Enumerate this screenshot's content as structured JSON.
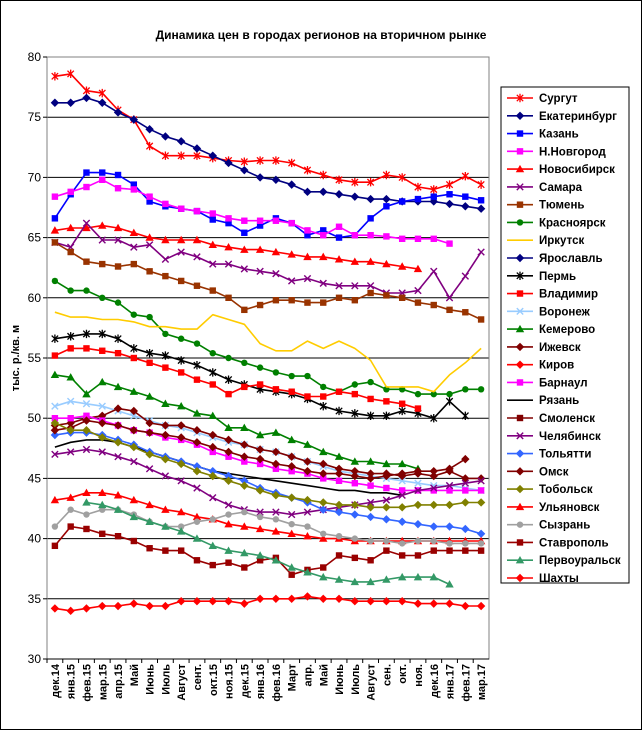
{
  "chart_data": {
    "type": "line",
    "title": "Динамика цен в городах регионов на вторичном рынке",
    "ylabel": "тыс. р./кв. м",
    "xlabel": "",
    "ylim": [
      30,
      80
    ],
    "yticks": [
      30,
      35,
      40,
      45,
      50,
      55,
      60,
      65,
      70,
      75,
      80
    ],
    "grid": "horizontal",
    "legend_position": "right",
    "x_tick_labels": [
      "дек.14",
      "янв.15",
      "фев.15",
      "мар.15",
      "апр.15",
      "Май",
      "Июнь",
      "Июль",
      "Август",
      "сент.",
      "окт.15",
      "ноя.15",
      "дек.15",
      "янв.16",
      "фев.16",
      "Март",
      "апр.",
      "Май",
      "Июнь",
      "Июль",
      "Август",
      "сен.",
      "окт.",
      "ноя.",
      "дек.16",
      "янв.17",
      "фев.17",
      "мар.17"
    ],
    "series": [
      {
        "name": "Сургут",
        "color": "#ff0000",
        "marker": "star",
        "values": [
          78.4,
          78.6,
          77.2,
          77.0,
          75.6,
          74.8,
          72.6,
          71.8,
          71.8,
          71.8,
          71.6,
          71.4,
          71.3,
          71.4,
          71.4,
          71.2,
          70.6,
          70.2,
          69.8,
          69.6,
          69.6,
          70.2,
          70.0,
          69.2,
          69.0,
          69.4,
          70.1,
          69.4
        ]
      },
      {
        "name": "Екатеринбург",
        "color": "#000080",
        "marker": "diamond",
        "values": [
          76.2,
          76.2,
          76.6,
          76.2,
          75.4,
          74.8,
          74.0,
          73.4,
          73.0,
          72.4,
          71.8,
          71.2,
          70.6,
          70.0,
          69.8,
          69.4,
          68.8,
          68.8,
          68.6,
          68.4,
          68.2,
          68.2,
          68.0,
          68.0,
          68.0,
          67.8,
          67.6,
          67.4
        ]
      },
      {
        "name": "Казань",
        "color": "#0000ff",
        "marker": "square",
        "values": [
          66.6,
          68.6,
          70.4,
          70.4,
          70.2,
          69.4,
          68.0,
          67.6,
          67.4,
          67.2,
          66.5,
          66.2,
          65.4,
          66.0,
          66.6,
          66.2,
          65.2,
          65.6,
          65.0,
          65.2,
          66.6,
          67.6,
          68.0,
          68.2,
          68.4,
          68.6,
          68.4,
          68.1
        ]
      },
      {
        "name": "Н.Новгород",
        "color": "#ff00ff",
        "marker": "square",
        "values": [
          68.4,
          68.8,
          69.2,
          69.8,
          69.1,
          69.0,
          68.4,
          67.8,
          67.4,
          67.2,
          67.0,
          66.6,
          66.4,
          66.4,
          66.4,
          66.2,
          65.6,
          65.2,
          65.9,
          65.2,
          65.2,
          65.1,
          64.9,
          64.9,
          64.9,
          64.5,
          null,
          null
        ]
      },
      {
        "name": "Новосибирск",
        "color": "#ff0000",
        "marker": "triangle",
        "values": [
          65.6,
          65.8,
          65.8,
          66.0,
          65.8,
          65.4,
          65.0,
          64.8,
          64.8,
          64.8,
          64.4,
          64.2,
          64.0,
          64.0,
          63.8,
          63.6,
          63.4,
          63.4,
          63.2,
          63.0,
          63.0,
          62.8,
          62.6,
          62.4,
          null,
          null,
          null,
          null
        ]
      },
      {
        "name": "Самара",
        "color": "#800080",
        "marker": "x",
        "values": [
          64.6,
          64.2,
          66.2,
          64.8,
          64.8,
          64.2,
          64.4,
          63.2,
          63.8,
          63.4,
          62.8,
          62.8,
          62.4,
          62.2,
          62.0,
          61.4,
          61.6,
          61.2,
          61.0,
          61.0,
          61.0,
          60.4,
          60.4,
          60.6,
          62.2,
          60.0,
          61.8,
          63.8
        ]
      },
      {
        "name": "Тюмень",
        "color": "#993300",
        "marker": "square",
        "values": [
          64.6,
          63.8,
          63.0,
          62.8,
          62.6,
          62.8,
          62.2,
          61.8,
          61.4,
          61.0,
          60.6,
          60.0,
          59.0,
          59.4,
          59.8,
          59.8,
          59.6,
          59.6,
          60.0,
          59.8,
          60.4,
          60.2,
          60.0,
          59.6,
          59.4,
          59.0,
          58.8,
          58.2
        ]
      },
      {
        "name": "Красноярск",
        "color": "#008000",
        "marker": "circle",
        "values": [
          61.4,
          60.6,
          60.6,
          60.0,
          59.6,
          58.6,
          58.4,
          57.0,
          56.6,
          56.2,
          55.4,
          55.0,
          54.6,
          54.2,
          53.8,
          53.5,
          53.5,
          52.6,
          52.2,
          52.8,
          53.0,
          52.4,
          52.4,
          52.0,
          52.0,
          52.0,
          52.4,
          52.4
        ]
      },
      {
        "name": "Иркутск",
        "color": "#ffcc00",
        "marker": "none",
        "values": [
          58.8,
          58.4,
          58.4,
          58.2,
          58.2,
          58.0,
          57.6,
          57.6,
          57.4,
          57.4,
          58.6,
          58.2,
          57.8,
          56.2,
          55.6,
          55.6,
          56.4,
          55.8,
          56.4,
          55.8,
          54.8,
          52.6,
          52.6,
          52.6,
          52.2,
          53.6,
          54.6,
          55.8
        ]
      },
      {
        "name": "Ярославль",
        "color": "#000080",
        "marker": "diamond",
        "values": [
          null,
          null,
          null,
          null,
          null,
          null,
          null,
          null,
          null,
          null,
          null,
          null,
          null,
          null,
          null,
          null,
          null,
          null,
          null,
          null,
          null,
          null,
          null,
          null,
          null,
          null,
          null,
          null
        ]
      },
      {
        "name": "Пермь",
        "color": "#000000",
        "marker": "star",
        "values": [
          56.6,
          56.8,
          57.0,
          57.0,
          56.6,
          55.8,
          55.4,
          55.2,
          54.8,
          54.4,
          53.8,
          53.2,
          52.8,
          52.4,
          52.2,
          52.0,
          51.6,
          51.0,
          50.6,
          50.4,
          50.2,
          50.2,
          50.6,
          50.4,
          50.0,
          51.4,
          50.2,
          null
        ]
      },
      {
        "name": "Владимир",
        "color": "#ff0000",
        "marker": "square",
        "values": [
          55.2,
          55.8,
          55.8,
          55.6,
          55.4,
          55.0,
          54.6,
          54.2,
          53.8,
          53.2,
          52.8,
          52.0,
          52.6,
          52.8,
          52.4,
          52.2,
          51.8,
          51.8,
          52.2,
          52.0,
          51.6,
          51.4,
          51.2,
          50.8,
          null,
          null,
          null,
          null
        ]
      },
      {
        "name": "Воронеж",
        "color": "#99ccff",
        "marker": "x",
        "values": [
          51.0,
          51.4,
          51.2,
          51.0,
          50.6,
          50.2,
          49.8,
          49.4,
          49.2,
          48.8,
          48.4,
          48.0,
          47.8,
          47.4,
          47.2,
          46.8,
          46.4,
          46.0,
          45.6,
          45.4,
          45.2,
          45.0,
          44.8,
          44.6,
          44.4,
          44.4,
          44.2,
          44.0
        ]
      },
      {
        "name": "Кемерово",
        "color": "#008000",
        "marker": "triangle",
        "values": [
          53.6,
          53.4,
          52.0,
          53.0,
          52.6,
          52.2,
          51.8,
          51.2,
          51.0,
          50.4,
          50.2,
          49.2,
          49.2,
          48.6,
          48.8,
          48.2,
          47.8,
          47.2,
          46.8,
          46.4,
          46.4,
          46.2,
          46.2,
          45.8,
          null,
          null,
          null,
          null
        ]
      },
      {
        "name": "Ижевск",
        "color": "#800000",
        "marker": "diamond",
        "values": [
          49.4,
          49.6,
          50.0,
          50.2,
          50.8,
          50.6,
          49.6,
          49.4,
          49.4,
          49.0,
          48.6,
          48.2,
          47.8,
          47.4,
          47.2,
          46.8,
          46.4,
          46.2,
          45.8,
          45.6,
          45.4,
          45.4,
          45.2,
          45.4,
          45.2,
          45.6,
          45.0,
          45.0
        ]
      },
      {
        "name": "Киров",
        "color": "#ff0000",
        "marker": "diamond",
        "values": [
          null,
          null,
          null,
          null,
          null,
          null,
          null,
          null,
          null,
          null,
          null,
          null,
          null,
          null,
          null,
          null,
          null,
          null,
          null,
          null,
          null,
          null,
          null,
          null,
          null,
          null,
          null,
          null
        ]
      },
      {
        "name": "Барнаул",
        "color": "#ff00ff",
        "marker": "square",
        "values": [
          50.0,
          50.0,
          50.2,
          49.8,
          49.4,
          49.0,
          48.8,
          48.4,
          48.2,
          47.8,
          47.2,
          46.8,
          46.4,
          46.2,
          45.8,
          45.6,
          45.4,
          45.0,
          44.8,
          44.6,
          44.4,
          44.2,
          44.0,
          44.0,
          44.0,
          44.0,
          44.0,
          44.0
        ]
      },
      {
        "name": "Рязань",
        "color": "#000000",
        "marker": "none",
        "values": [
          47.6,
          48.0,
          48.2,
          48.2,
          48.0,
          47.6,
          47.2,
          46.8,
          46.4,
          46.0,
          45.6,
          45.4,
          45.2,
          45.0,
          44.8,
          44.6,
          44.4,
          44.2,
          44.0,
          44.0,
          43.8,
          43.8,
          43.6,
          null,
          null,
          null,
          null,
          null
        ]
      },
      {
        "name": "Смоленск",
        "color": "#800000",
        "marker": "square",
        "values": [
          null,
          null,
          null,
          null,
          null,
          null,
          null,
          null,
          null,
          null,
          null,
          null,
          null,
          null,
          null,
          null,
          null,
          null,
          null,
          null,
          null,
          null,
          null,
          null,
          null,
          null,
          null,
          null
        ]
      },
      {
        "name": "Челябинск",
        "color": "#800080",
        "marker": "x",
        "values": [
          47.0,
          47.2,
          47.4,
          47.2,
          46.8,
          46.4,
          45.8,
          45.2,
          44.8,
          44.2,
          43.4,
          42.8,
          42.4,
          42.2,
          42.2,
          42.0,
          42.2,
          42.4,
          42.6,
          42.8,
          43.0,
          43.2,
          43.6,
          44.0,
          44.2,
          44.4,
          44.6,
          44.8
        ]
      },
      {
        "name": "Тольятти",
        "color": "#3366ff",
        "marker": "diamond",
        "values": [
          48.6,
          48.8,
          48.8,
          48.6,
          48.2,
          47.8,
          47.2,
          46.8,
          46.4,
          46.0,
          45.6,
          45.2,
          44.8,
          44.2,
          43.8,
          43.4,
          43.0,
          42.4,
          42.2,
          42.0,
          41.8,
          41.6,
          41.4,
          41.2,
          41.0,
          41.0,
          40.8,
          40.4
        ]
      },
      {
        "name": "Омск",
        "color": "#800000",
        "marker": "diamond",
        "values": [
          49.0,
          49.2,
          49.8,
          49.6,
          49.4,
          49.0,
          48.8,
          48.6,
          48.4,
          48.0,
          47.6,
          47.2,
          46.8,
          46.6,
          46.2,
          46.0,
          45.6,
          45.4,
          45.4,
          45.2,
          45.0,
          45.2,
          45.4,
          45.6,
          45.6,
          45.8,
          46.6,
          null
        ]
      },
      {
        "name": "Тобольск",
        "color": "#808000",
        "marker": "diamond",
        "values": [
          49.6,
          49.0,
          49.0,
          48.4,
          48.0,
          47.6,
          47.0,
          46.6,
          46.2,
          45.6,
          45.2,
          44.8,
          44.4,
          44.0,
          43.6,
          43.4,
          43.2,
          43.0,
          42.8,
          42.8,
          42.6,
          42.6,
          42.6,
          42.8,
          42.8,
          42.8,
          43.0,
          43.0
        ]
      },
      {
        "name": "Ульяновск",
        "color": "#ff0000",
        "marker": "triangle",
        "values": [
          43.2,
          43.4,
          43.8,
          43.8,
          43.6,
          43.2,
          42.8,
          42.4,
          42.2,
          41.8,
          41.6,
          41.2,
          41.0,
          40.8,
          40.6,
          40.4,
          40.2,
          40.0,
          40.0,
          39.8,
          39.8,
          39.8,
          39.8,
          39.8,
          39.8,
          39.8,
          39.8,
          39.8
        ]
      },
      {
        "name": "Сызрань",
        "color": "#a0a0a0",
        "marker": "circle",
        "values": [
          41.0,
          42.4,
          42.0,
          42.4,
          42.4,
          42.0,
          41.4,
          41.0,
          41.0,
          41.4,
          41.6,
          42.0,
          42.2,
          41.8,
          41.6,
          41.2,
          41.0,
          40.4,
          40.2,
          40.0,
          39.8,
          39.8,
          39.6,
          39.8,
          39.8,
          39.6,
          39.6,
          39.6
        ]
      },
      {
        "name": "Ставрополь",
        "color": "#990000",
        "marker": "square",
        "values": [
          39.4,
          41.0,
          40.8,
          40.4,
          40.2,
          39.8,
          39.2,
          39.0,
          39.0,
          38.2,
          37.8,
          38.0,
          37.6,
          38.2,
          38.4,
          37.0,
          37.4,
          37.6,
          38.6,
          38.4,
          38.2,
          39.0,
          38.6,
          38.6,
          39.0,
          39.0,
          39.0,
          39.0
        ]
      },
      {
        "name": "Первоуральск",
        "color": "#339966",
        "marker": "triangle",
        "values": [
          null,
          null,
          43.0,
          42.8,
          42.4,
          41.8,
          41.4,
          41.0,
          40.6,
          40.0,
          39.4,
          39.0,
          38.8,
          38.6,
          38.2,
          37.6,
          37.2,
          36.8,
          36.6,
          36.4,
          36.4,
          36.6,
          36.8,
          36.8,
          36.8,
          36.2,
          null,
          null
        ]
      },
      {
        "name": "Шахты",
        "color": "#ff0000",
        "marker": "diamond",
        "values": [
          34.2,
          34.0,
          34.2,
          34.4,
          34.4,
          34.6,
          34.4,
          34.4,
          34.8,
          34.8,
          34.8,
          34.8,
          34.6,
          35.0,
          35.0,
          35.0,
          35.2,
          35.0,
          35.0,
          34.8,
          34.8,
          34.8,
          34.8,
          34.6,
          34.6,
          34.6,
          34.4,
          34.4
        ]
      }
    ]
  }
}
